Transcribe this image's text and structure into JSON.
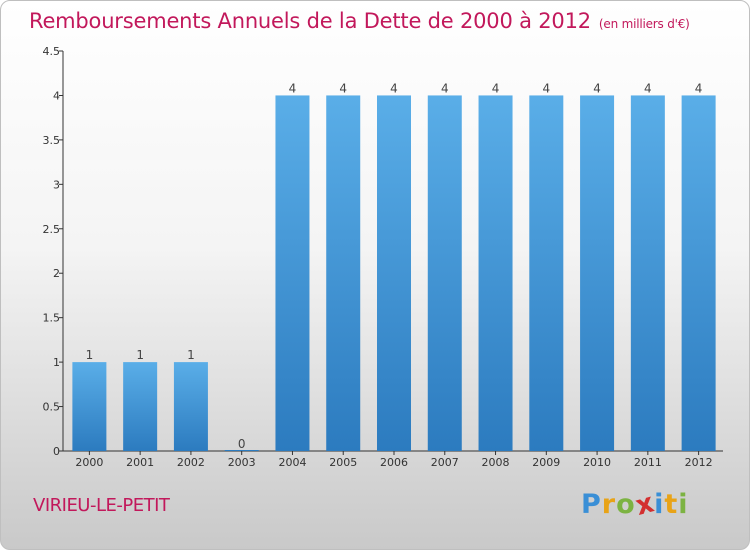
{
  "page": {
    "title": "Remboursements Annuels de la Dette de 2000 à 2012",
    "unit": "(en milliers d'€)",
    "location": "VIRIEU-LE-PETIT",
    "logo_letters": [
      "P",
      "r",
      "o",
      "x",
      "i",
      "t",
      "i"
    ],
    "logo_colors": [
      "#3a8fd6",
      "#e8a317",
      "#7cb342",
      "#d32f2f",
      "#3a8fd6",
      "#e8a317",
      "#7cb342"
    ]
  },
  "chart_data": {
    "type": "bar",
    "categories": [
      "2000",
      "2001",
      "2002",
      "2003",
      "2004",
      "2005",
      "2006",
      "2007",
      "2008",
      "2009",
      "2010",
      "2011",
      "2012"
    ],
    "values": [
      1,
      1,
      1,
      0,
      4,
      4,
      4,
      4,
      4,
      4,
      4,
      4,
      4
    ],
    "data_labels": [
      "1",
      "1",
      "1",
      "0",
      "4",
      "4",
      "4",
      "4",
      "4",
      "4",
      "4",
      "4",
      "4"
    ],
    "title": "Remboursements Annuels de la Dette de 2000 à 2012",
    "xlabel": "",
    "ylabel": "",
    "ylim": [
      0,
      4.5
    ],
    "yticks": [
      0,
      0.5,
      1,
      1.5,
      2,
      2.5,
      3,
      3.5,
      4,
      4.5
    ],
    "ytick_labels": [
      "0",
      "0.5",
      "1",
      "1.5",
      "2",
      "2.5",
      "3",
      "3.5",
      "4",
      "4.5"
    ],
    "grid": false,
    "bar_color": "#4a9fe0",
    "axis_color": "#333333"
  }
}
